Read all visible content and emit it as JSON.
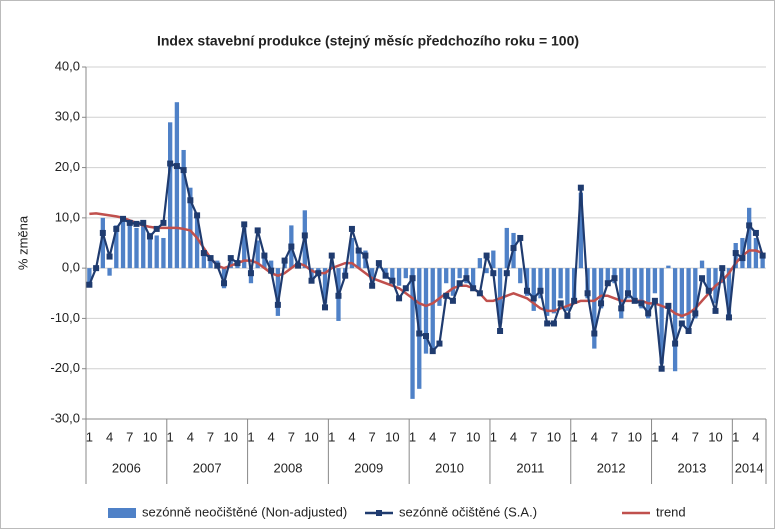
{
  "chart_data": {
    "type": "bar-line",
    "title": "Index stavební produkce (stejný měsíc předchozího roku = 100)",
    "y_label": "% změna",
    "categories": [
      "1",
      null,
      null,
      "4",
      null,
      null,
      "7",
      null,
      null,
      "10",
      null,
      null,
      "1",
      null,
      null,
      "4",
      null,
      null,
      "7",
      null,
      null,
      "10",
      null,
      null,
      "1",
      null,
      null,
      "4",
      null,
      null,
      "7",
      null,
      null,
      "10",
      null,
      null,
      "1",
      null,
      null,
      "4",
      null,
      null,
      "7",
      null,
      null,
      "10",
      null,
      null,
      "1",
      null,
      null,
      "4",
      null,
      null,
      "7",
      null,
      null,
      "10",
      null,
      null,
      "1",
      null,
      null,
      "4",
      null,
      null,
      "7",
      null,
      null,
      "10",
      null,
      null,
      "1",
      null,
      null,
      "4",
      null,
      null,
      "7",
      null,
      null,
      "10",
      null,
      null,
      "1",
      null,
      null,
      "4",
      null,
      null,
      "7",
      null,
      null,
      "10",
      null,
      null,
      "1",
      null,
      null,
      "4",
      null
    ],
    "years": [
      "2006",
      "2007",
      "2008",
      "2009",
      "2010",
      "2011",
      "2012",
      "2013",
      "2014"
    ],
    "ylim": [
      -30,
      40
    ],
    "yticks": [
      {
        "value": -30,
        "label": "-30,0"
      },
      {
        "value": -20,
        "label": "-20,0"
      },
      {
        "value": -10,
        "label": "-10,0"
      },
      {
        "value": 0,
        "label": "0,0"
      },
      {
        "value": 10,
        "label": "10,0"
      },
      {
        "value": 20,
        "label": "20,0"
      },
      {
        "value": 30,
        "label": "30,0"
      },
      {
        "value": 40,
        "label": "40,0"
      }
    ],
    "grid": true,
    "legend": "bottom",
    "series": [
      {
        "name": "sezónně neočištěné (Non-adjusted)",
        "kind": "bar",
        "color": "#4f81c7",
        "values": [
          -3,
          0,
          10,
          -1.5,
          8.5,
          9.5,
          9,
          8,
          9.5,
          7,
          6.5,
          6,
          29,
          33,
          23.5,
          16,
          11,
          3,
          1.5,
          1.5,
          -4,
          1.5,
          0.5,
          8,
          -3,
          5.5,
          3,
          1.5,
          -9.5,
          1,
          8.5,
          0.5,
          11.5,
          -2,
          -1.5,
          -7,
          1,
          -10.5,
          -1.5,
          6,
          3.5,
          3.5,
          -3,
          0.5,
          -1,
          -2,
          -3.5,
          -2,
          -26,
          -24,
          -17,
          -16,
          -7.5,
          -3,
          -5.5,
          -2,
          -3,
          -3.5,
          2,
          -1,
          3.5,
          -11,
          8,
          7,
          -3,
          -5.5,
          -8.5,
          -6,
          -9.5,
          -9,
          -6,
          -8.5,
          -7,
          15,
          -6,
          -16,
          -8,
          -3,
          -3,
          -10,
          -6,
          -7,
          -8,
          -10,
          -5,
          -19,
          0.5,
          -20.5,
          -10,
          -13,
          -10,
          1.5,
          -5,
          -7,
          -3,
          -10,
          5,
          6,
          12,
          6,
          3
        ]
      },
      {
        "name": "sezónně očištěné (S.A.)",
        "kind": "line-marker",
        "color": "#1f3b6f",
        "values": [
          -3.3,
          0,
          7,
          2.3,
          7.8,
          9.8,
          9,
          8.8,
          9,
          6.3,
          7.8,
          9,
          20.8,
          20.3,
          19.5,
          13.5,
          10.5,
          3,
          2,
          0.5,
          -3,
          2,
          1,
          8.7,
          -1,
          7.5,
          2.5,
          -0.5,
          -7.3,
          1.5,
          4.3,
          0.5,
          6.5,
          -2.5,
          -1,
          -7.8,
          2.5,
          -5.5,
          -1.5,
          7.8,
          3.5,
          2.5,
          -3.5,
          1,
          -1.5,
          -2.5,
          -6,
          -4,
          -2,
          -13,
          -13.5,
          -16.5,
          -15,
          -5.5,
          -6.5,
          -3,
          -2,
          -4,
          -5,
          2.5,
          -1,
          -12.5,
          -1,
          4,
          6,
          -4.5,
          -6,
          -4.5,
          -11,
          -11,
          -7,
          -9.5,
          -6.5,
          16,
          -5,
          -13,
          -7,
          -3,
          -2,
          -8,
          -5,
          -6.5,
          -7,
          -9,
          -6.5,
          -20,
          -7.5,
          -15,
          -11,
          -12.5,
          -9,
          -2,
          -4.5,
          -8.5,
          0,
          -9.8,
          3,
          2,
          8.5,
          7,
          2.5
        ]
      },
      {
        "name": "trend",
        "kind": "line",
        "color": "#c0504d",
        "values": [
          10.8,
          10.9,
          10.7,
          10.5,
          10.3,
          10,
          9.5,
          9,
          8.5,
          8.2,
          8,
          8,
          8,
          8,
          7.8,
          7.5,
          6,
          4,
          2,
          0.5,
          0,
          0.5,
          1,
          1.5,
          1.5,
          1,
          0,
          -1,
          -1.5,
          -1,
          0,
          1,
          0.5,
          -0.5,
          -1,
          -1,
          0,
          0.5,
          1,
          1,
          0,
          -1,
          -2,
          -2.5,
          -3,
          -3.5,
          -4,
          -5,
          -6,
          -7,
          -7.5,
          -7,
          -6,
          -5,
          -4,
          -3.5,
          -3.5,
          -4,
          -5,
          -6.5,
          -6.5,
          -6,
          -5.5,
          -5,
          -5.5,
          -6,
          -7,
          -8,
          -8.5,
          -8.5,
          -8,
          -7.5,
          -7,
          -6.5,
          -6.5,
          -6.5,
          -5.5,
          -5.5,
          -6,
          -6.5,
          -6.5,
          -6.5,
          -6.5,
          -7,
          -7,
          -7.5,
          -8,
          -9,
          -9.5,
          -9,
          -8,
          -6.5,
          -5,
          -3.5,
          -2.5,
          -1,
          1,
          2.5,
          3.5,
          3.5,
          3
        ]
      }
    ]
  }
}
